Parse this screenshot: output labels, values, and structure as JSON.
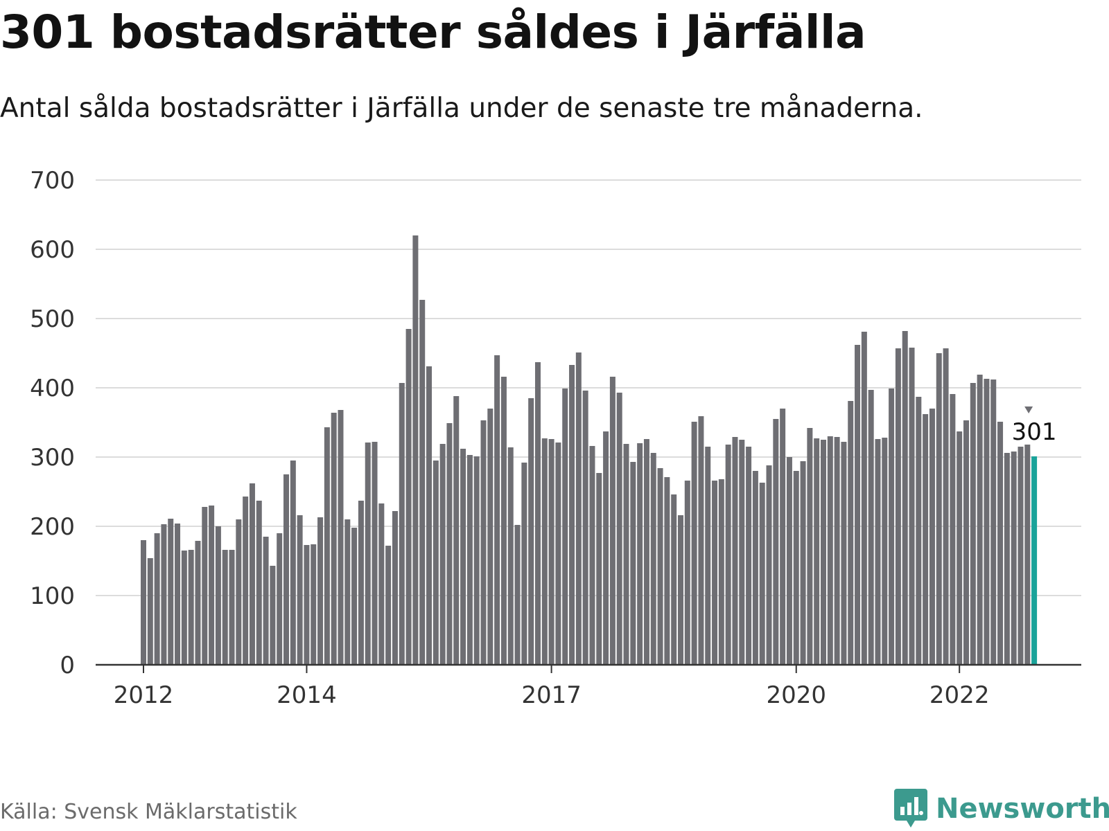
{
  "header": {
    "title": "301 bostadsrätter såldes i Järfälla",
    "subtitle": "Antal sålda bostadsrätter i Järfälla under de senaste tre månaderna."
  },
  "footer": {
    "source": "Källa: Svensk Mäklarstatistik",
    "brand": "Newsworthy",
    "brand_icon": "bar-chart-speech-bubble-icon"
  },
  "colors": {
    "bar": "#6e6e73",
    "highlight": "#1aa39a",
    "grid": "#dcdcdc",
    "axis": "#333333",
    "brand": "#3c9a8e"
  },
  "chart_data": {
    "type": "bar",
    "title": "301 bostadsrätter såldes i Järfälla",
    "subtitle": "Antal sålda bostadsrätter i Järfälla under de senaste tre månaderna.",
    "ylim": [
      0,
      700
    ],
    "y_ticks": [
      "0",
      "100",
      "200",
      "300",
      "400",
      "500",
      "600",
      "700"
    ],
    "x_ticks": [
      {
        "label": "2012",
        "index": 0
      },
      {
        "label": "2014",
        "index": 24
      },
      {
        "label": "2017",
        "index": 60
      },
      {
        "label": "2020",
        "index": 96
      },
      {
        "label": "2022",
        "index": 120
      }
    ],
    "grid": true,
    "highlight_index": 131,
    "highlight_label": "301",
    "values": [
      180,
      154,
      190,
      203,
      211,
      204,
      165,
      166,
      179,
      228,
      230,
      200,
      166,
      166,
      210,
      243,
      262,
      237,
      185,
      143,
      190,
      275,
      295,
      216,
      173,
      174,
      213,
      343,
      364,
      368,
      210,
      198,
      237,
      321,
      322,
      233,
      172,
      222,
      407,
      485,
      620,
      527,
      431,
      295,
      319,
      349,
      388,
      312,
      303,
      301,
      353,
      370,
      447,
      416,
      314,
      202,
      292,
      385,
      437,
      327,
      326,
      321,
      399,
      433,
      451,
      396,
      316,
      277,
      337,
      416,
      393,
      319,
      293,
      320,
      326,
      306,
      284,
      271,
      246,
      216,
      266,
      351,
      359,
      315,
      266,
      268,
      318,
      329,
      325,
      315,
      280,
      263,
      288,
      355,
      370,
      300,
      280,
      294,
      342,
      327,
      325,
      330,
      329,
      322,
      381,
      462,
      481,
      397,
      326,
      328,
      399,
      457,
      482,
      458,
      387,
      362,
      370,
      450,
      457,
      391,
      337,
      353,
      407,
      419,
      413,
      412,
      351,
      306,
      308,
      315,
      318,
      301
    ]
  }
}
